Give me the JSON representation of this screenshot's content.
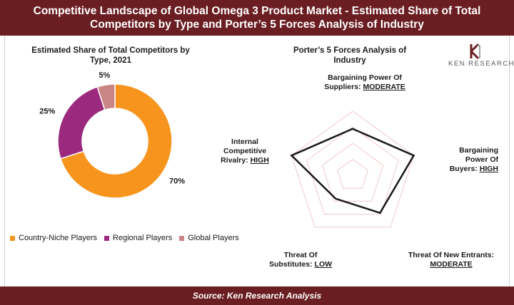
{
  "header": {
    "title_line1": "Competitive Landscape of Global Omega 3 Product Market - Estimated Share of Total",
    "title_line2": "Competitors by Type and Porter’s 5 Forces Analysis of Industry"
  },
  "footer": {
    "source": "Source: Ken Research Analysis"
  },
  "logo": {
    "text": "KEN RESEARCH",
    "icon": "ken-research-logo-icon"
  },
  "colors": {
    "header_bg": "#6b1e22",
    "country_niche": "#f7941d",
    "regional": "#9b2a7f",
    "global": "#c98583",
    "radar_line": "#1a1a1a",
    "radar_grid": "#f0c9c9"
  },
  "chart_data": [
    {
      "type": "pie",
      "title_line1": "Estimated Share of Total Competitors by",
      "title_line2": "Type, 2021",
      "variant": "donut",
      "categories": [
        "Country-Niche Players",
        "Regional Players",
        "Global Players"
      ],
      "values": [
        70,
        25,
        5
      ],
      "labels": [
        "70%",
        "25%",
        "5%"
      ],
      "legend": "bottom"
    },
    {
      "type": "radar",
      "title_line1": "Porter’s 5 Forces Analysis of",
      "title_line2": "Industry",
      "axes": [
        {
          "name_lines": [
            "Bargaining Power Of",
            "Suppliers:"
          ],
          "level": "MODERATE",
          "value": 0.5
        },
        {
          "name_lines": [
            "Bargaining",
            "Power Of",
            "Buyers:"
          ],
          "level": "HIGH",
          "value": 1.0
        },
        {
          "name_lines": [
            "Threat Of New Entrants:"
          ],
          "level": "MODERATE",
          "value": 0.5
        },
        {
          "name_lines": [
            "Threat Of",
            "Substitutes:"
          ],
          "level": "LOW",
          "value": 0.0
        },
        {
          "name_lines": [
            "Internal",
            "Competitive",
            "Rivalry:"
          ],
          "level": "HIGH",
          "value": 1.0
        }
      ],
      "rings": 4
    }
  ]
}
